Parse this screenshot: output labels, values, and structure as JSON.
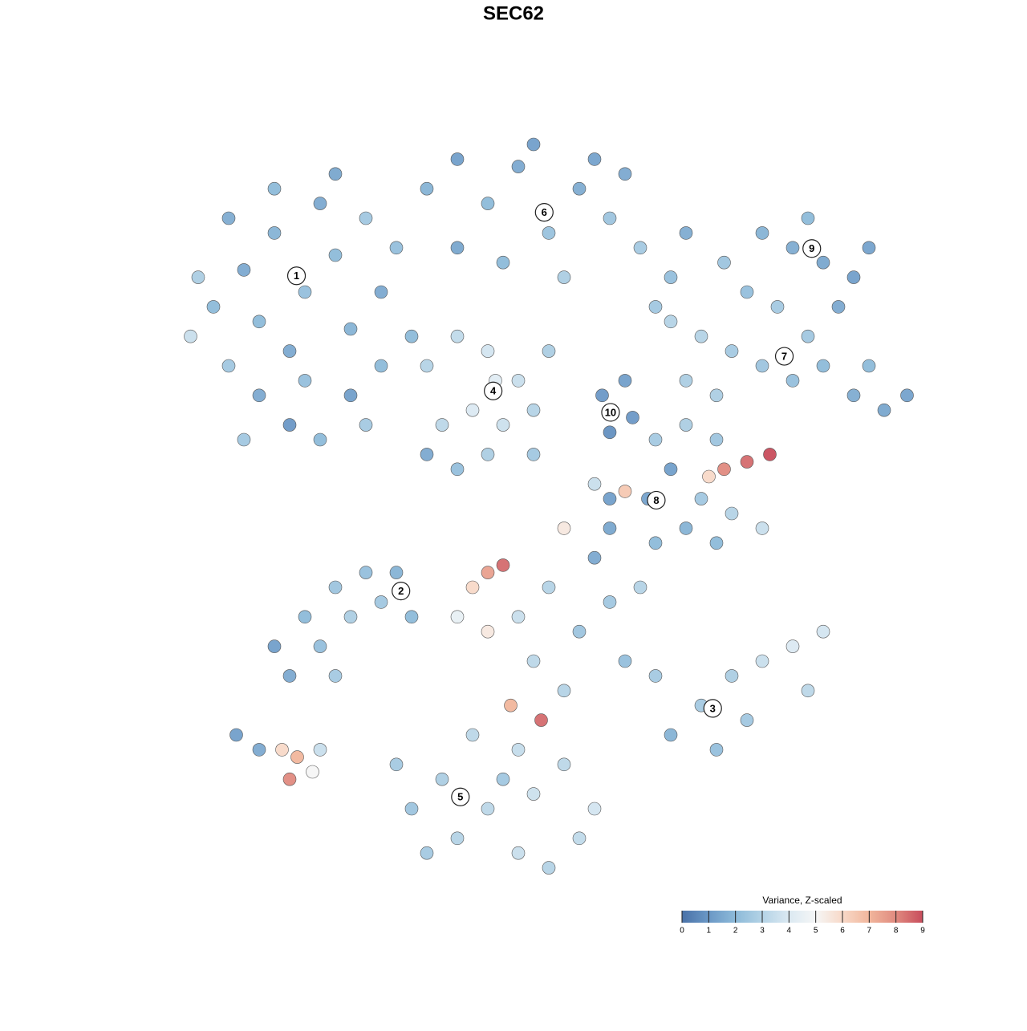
{
  "chart_data": {
    "type": "scatter",
    "title": "SEC62",
    "xlim": [
      0,
      100
    ],
    "ylim": [
      0,
      100
    ],
    "x": [
      5,
      8,
      10,
      12,
      14,
      16,
      18,
      20,
      22,
      24,
      26,
      28,
      30,
      32,
      14,
      18,
      22,
      12,
      20,
      26,
      34,
      6,
      10,
      16,
      24,
      28,
      30,
      36,
      40,
      44,
      48,
      52,
      56,
      60,
      64,
      68,
      40,
      46,
      54,
      58,
      62,
      50,
      70,
      66,
      75,
      80,
      84,
      88,
      92,
      90,
      86,
      78,
      94,
      82,
      68,
      72,
      76,
      80,
      84,
      88,
      92,
      96,
      99,
      74,
      70,
      86,
      94,
      36,
      40,
      44,
      48,
      42,
      46,
      38,
      50,
      44,
      36,
      40,
      50,
      45,
      52,
      59,
      62,
      60,
      63,
      66,
      70,
      74,
      68,
      72,
      76,
      80,
      74,
      70,
      65,
      60,
      75,
      78,
      81,
      73,
      62,
      16,
      20,
      24,
      28,
      32,
      18,
      22,
      26,
      30,
      34,
      24,
      40,
      42,
      44,
      46,
      44,
      48,
      52,
      50,
      54,
      47,
      51,
      56,
      58,
      60,
      62,
      60,
      54,
      66,
      68,
      72,
      76,
      80,
      84,
      88,
      74,
      78,
      86,
      64,
      66,
      58,
      48,
      42,
      32,
      34,
      38,
      40,
      44,
      48,
      52,
      56,
      58,
      36,
      46,
      50,
      54,
      11,
      14,
      17,
      19,
      18,
      21,
      22
    ],
    "y": [
      74,
      78,
      70,
      83,
      76,
      88,
      72,
      80,
      92,
      85,
      75,
      90,
      80,
      86,
      66,
      62,
      60,
      60,
      68,
      66,
      74,
      82,
      90,
      94,
      96,
      62,
      70,
      94,
      98,
      92,
      97,
      88,
      94,
      90,
      86,
      82,
      86,
      84,
      82,
      98,
      96,
      100,
      88,
      78,
      84,
      88,
      86,
      84,
      82,
      78,
      90,
      80,
      86,
      78,
      76,
      74,
      72,
      70,
      68,
      70,
      66,
      64,
      66,
      66,
      68,
      74,
      70,
      70,
      74,
      72,
      68,
      64,
      62,
      62,
      64,
      58,
      58,
      56,
      58,
      68,
      72,
      66,
      68,
      61,
      63,
      60,
      62,
      60,
      56,
      52,
      50,
      48,
      46,
      48,
      52,
      52,
      56,
      57,
      58,
      55,
      53,
      32,
      36,
      40,
      42,
      42,
      28,
      32,
      36,
      38,
      36,
      28,
      36,
      40,
      42,
      43,
      34,
      36,
      40,
      30,
      26,
      24,
      22,
      34,
      44,
      38,
      30,
      48,
      48,
      28,
      20,
      24,
      28,
      30,
      32,
      34,
      18,
      22,
      26,
      40,
      46,
      54,
      18,
      20,
      16,
      10,
      14,
      6,
      10,
      4,
      2,
      6,
      10,
      4,
      14,
      12,
      16,
      20,
      18,
      18,
      17,
      14,
      15,
      18
    ],
    "values": [
      3.5,
      2,
      2.5,
      1.5,
      2,
      1.8,
      1.5,
      2.2,
      1.5,
      2,
      1.8,
      2.5,
      1.5,
      2.2,
      1.5,
      1,
      2,
      2.5,
      2.2,
      1.2,
      2,
      2.8,
      1.6,
      2,
      1.4,
      2.6,
      2,
      1.8,
      1.2,
      2,
      1.5,
      2.3,
      1.6,
      2.4,
      2.6,
      2.2,
      1.4,
      2,
      2.8,
      1.3,
      1.5,
      1.2,
      1.6,
      2.5,
      2.4,
      1.8,
      1.6,
      1.4,
      1.2,
      1.5,
      2,
      2.2,
      1.3,
      2.6,
      3,
      3,
      2.6,
      2.4,
      2.2,
      2,
      1.6,
      1.4,
      1.3,
      2.8,
      2.8,
      2.5,
      2,
      3,
      3.3,
      3.8,
      3.5,
      4,
      3.6,
      3.2,
      3,
      2.8,
      1.5,
      2.2,
      2.5,
      4.2,
      2.8,
      1,
      1.2,
      0.8,
      1,
      2.6,
      2.8,
      2.4,
      1.2,
      2.5,
      3,
      3.5,
      2,
      1.8,
      1.3,
      1.2,
      8,
      8.5,
      9,
      6,
      6.5,
      1.2,
      2,
      2.4,
      2.2,
      1.8,
      1.5,
      2.2,
      2.8,
      2.5,
      2,
      2.6,
      4.5,
      6,
      7.5,
      8.5,
      5.5,
      3.5,
      3,
      3.2,
      3,
      7,
      8.5,
      2.4,
      1.5,
      2.5,
      2.2,
      1.4,
      5.5,
      2.6,
      1.8,
      2.6,
      2.8,
      3.5,
      4,
      3.8,
      2.2,
      2.5,
      3.2,
      3,
      2,
      3.5,
      3.4,
      3.2,
      2.6,
      2.4,
      2.8,
      3,
      3.2,
      3.5,
      3,
      3.3,
      3.8,
      2.6,
      2.5,
      3.6,
      3.2,
      1.2,
      1.5,
      6,
      7,
      8,
      5,
      3.5
    ],
    "labels": [
      {
        "text": "1",
        "x": 18.9,
        "y": 82.2
      },
      {
        "text": "6",
        "x": 51.4,
        "y": 90.8
      },
      {
        "text": "9",
        "x": 86.5,
        "y": 85.9
      },
      {
        "text": "4",
        "x": 44.7,
        "y": 66.6
      },
      {
        "text": "7",
        "x": 82.9,
        "y": 71.3
      },
      {
        "text": "10",
        "x": 60.1,
        "y": 63.7
      },
      {
        "text": "8",
        "x": 66.1,
        "y": 51.8
      },
      {
        "text": "2",
        "x": 32.6,
        "y": 39.5
      },
      {
        "text": "3",
        "x": 73.5,
        "y": 23.6
      },
      {
        "text": "5",
        "x": 40.4,
        "y": 11.6
      }
    ],
    "colorbar": {
      "title": "Variance, Z-scaled",
      "lim": [
        0,
        9
      ],
      "ticks": [
        0,
        1,
        2,
        3,
        4,
        5,
        6,
        7,
        8,
        9
      ],
      "colors": [
        "#4a72a8",
        "#6b98c6",
        "#8dbad9",
        "#b4d3e6",
        "#dbe9f2",
        "#f5f6f6",
        "#f8d9c8",
        "#f1b69c",
        "#e08a7f",
        "#c84d5c"
      ]
    }
  }
}
